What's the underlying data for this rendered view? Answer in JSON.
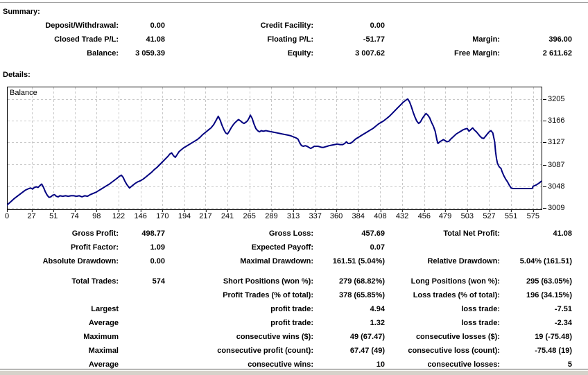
{
  "summary": {
    "heading": "Summary:",
    "rows": [
      {
        "c1l": "Deposit/Withdrawal:",
        "c1v": "0.00",
        "c2l": "Credit Facility:",
        "c2v": "0.00",
        "c3l": "",
        "c3v": ""
      },
      {
        "c1l": "Closed Trade P/L:",
        "c1v": "41.08",
        "c2l": "Floating P/L:",
        "c2v": "-51.77",
        "c3l": "Margin:",
        "c3v": "396.00"
      },
      {
        "c1l": "Balance:",
        "c1v": "3 059.39",
        "c2l": "Equity:",
        "c2v": "3 007.62",
        "c3l": "Free Margin:",
        "c3v": "2 611.62"
      }
    ]
  },
  "details": {
    "heading": "Details:",
    "rows": [
      {
        "c1l": "Gross Profit:",
        "c1v": "498.77",
        "c2l": "Gross Loss:",
        "c2v": "457.69",
        "c3l": "Total Net Profit:",
        "c3v": "41.08"
      },
      {
        "c1l": "Profit Factor:",
        "c1v": "1.09",
        "c2l": "Expected Payoff:",
        "c2v": "0.07",
        "c3l": "",
        "c3v": ""
      },
      {
        "c1l": "Absolute Drawdown:",
        "c1v": "0.00",
        "c2l": "Maximal Drawdown:",
        "c2v": "161.51 (5.04%)",
        "c3l": "Relative Drawdown:",
        "c3v": "5.04% (161.51)"
      },
      {
        "c1l": "Total Trades:",
        "c1v": "574",
        "c2l": "Short Positions (won %):",
        "c2v": "279 (68.82%)",
        "c3l": "Long Positions (won %):",
        "c3v": "295 (63.05%)"
      },
      {
        "c1l": "",
        "c1v": "",
        "c2l": "Profit Trades (% of total):",
        "c2v": "378 (65.85%)",
        "c3l": "Loss trades (% of total):",
        "c3v": "196 (34.15%)"
      },
      {
        "c1l": "Largest",
        "c1v": "",
        "c2l": "profit trade:",
        "c2v": "4.94",
        "c3l": "loss trade:",
        "c3v": "-7.51"
      },
      {
        "c1l": "Average",
        "c1v": "",
        "c2l": "profit trade:",
        "c2v": "1.32",
        "c3l": "loss trade:",
        "c3v": "-2.34"
      },
      {
        "c1l": "Maximum",
        "c1v": "",
        "c2l": "consecutive wins ($):",
        "c2v": "49 (67.47)",
        "c3l": "consecutive losses ($):",
        "c3v": "19 (-75.48)"
      },
      {
        "c1l": "Maximal",
        "c1v": "",
        "c2l": "consecutive profit (count):",
        "c2v": "67.47 (49)",
        "c3l": "consecutive loss (count):",
        "c3v": "-75.48 (19)"
      },
      {
        "c1l": "Average",
        "c1v": "",
        "c2l": "consecutive wins:",
        "c2v": "10",
        "c3l": "consecutive losses:",
        "c3v": "5"
      }
    ]
  },
  "chart_data": {
    "type": "line",
    "title": "Balance",
    "xlabel": "",
    "ylabel": "",
    "x_ticks": [
      0,
      27,
      51,
      74,
      98,
      122,
      146,
      170,
      194,
      217,
      241,
      265,
      289,
      313,
      337,
      360,
      384,
      408,
      432,
      456,
      479,
      503,
      527,
      551,
      575
    ],
    "y_ticks": [
      3009,
      3048,
      3087,
      3127,
      3166,
      3205
    ],
    "x_range": [
      0,
      585
    ],
    "y_range": [
      3005.3,
      3227.2
    ],
    "grid": "dashed",
    "legend_position": "none",
    "line_color": "#000080",
    "grid_color": "#c8c8c8",
    "series": [
      {
        "name": "Balance",
        "points": [
          [
            0,
            3014
          ],
          [
            4,
            3020
          ],
          [
            8,
            3026
          ],
          [
            12,
            3031
          ],
          [
            16,
            3036
          ],
          [
            20,
            3041
          ],
          [
            24,
            3044
          ],
          [
            26,
            3045
          ],
          [
            28,
            3043
          ],
          [
            30,
            3046
          ],
          [
            32,
            3047
          ],
          [
            34,
            3046
          ],
          [
            36,
            3049
          ],
          [
            38,
            3052
          ],
          [
            40,
            3046
          ],
          [
            42,
            3038
          ],
          [
            44,
            3032
          ],
          [
            46,
            3028
          ],
          [
            48,
            3029
          ],
          [
            50,
            3032
          ],
          [
            52,
            3033
          ],
          [
            54,
            3030
          ],
          [
            56,
            3029
          ],
          [
            58,
            3031
          ],
          [
            61,
            3030
          ],
          [
            64,
            3031
          ],
          [
            67,
            3030
          ],
          [
            70,
            3031
          ],
          [
            73,
            3031
          ],
          [
            76,
            3030
          ],
          [
            79,
            3031
          ],
          [
            82,
            3029
          ],
          [
            85,
            3031
          ],
          [
            88,
            3030
          ],
          [
            91,
            3033
          ],
          [
            94,
            3035
          ],
          [
            97,
            3037
          ],
          [
            100,
            3040
          ],
          [
            104,
            3044
          ],
          [
            108,
            3048
          ],
          [
            112,
            3052
          ],
          [
            116,
            3057
          ],
          [
            120,
            3062
          ],
          [
            123,
            3066
          ],
          [
            125,
            3068
          ],
          [
            127,
            3064
          ],
          [
            129,
            3057
          ],
          [
            131,
            3051
          ],
          [
            134,
            3045
          ],
          [
            137,
            3049
          ],
          [
            140,
            3053
          ],
          [
            143,
            3056
          ],
          [
            146,
            3058
          ],
          [
            149,
            3061
          ],
          [
            152,
            3065
          ],
          [
            155,
            3069
          ],
          [
            158,
            3073
          ],
          [
            161,
            3078
          ],
          [
            164,
            3082
          ],
          [
            167,
            3087
          ],
          [
            170,
            3092
          ],
          [
            173,
            3097
          ],
          [
            176,
            3102
          ],
          [
            178,
            3106
          ],
          [
            180,
            3108
          ],
          [
            182,
            3103
          ],
          [
            184,
            3100
          ],
          [
            186,
            3105
          ],
          [
            188,
            3110
          ],
          [
            190,
            3113
          ],
          [
            193,
            3117
          ],
          [
            196,
            3120
          ],
          [
            199,
            3123
          ],
          [
            202,
            3126
          ],
          [
            205,
            3129
          ],
          [
            208,
            3132
          ],
          [
            211,
            3136
          ],
          [
            214,
            3141
          ],
          [
            217,
            3145
          ],
          [
            220,
            3149
          ],
          [
            223,
            3153
          ],
          [
            226,
            3159
          ],
          [
            228,
            3165
          ],
          [
            230,
            3171
          ],
          [
            231,
            3174
          ],
          [
            233,
            3167
          ],
          [
            235,
            3158
          ],
          [
            237,
            3150
          ],
          [
            239,
            3144
          ],
          [
            241,
            3142
          ],
          [
            243,
            3147
          ],
          [
            245,
            3153
          ],
          [
            247,
            3158
          ],
          [
            249,
            3162
          ],
          [
            251,
            3165
          ],
          [
            253,
            3168
          ],
          [
            255,
            3166
          ],
          [
            257,
            3163
          ],
          [
            259,
            3161
          ],
          [
            261,
            3163
          ],
          [
            263,
            3166
          ],
          [
            265,
            3172
          ],
          [
            266,
            3176
          ],
          [
            268,
            3170
          ],
          [
            270,
            3160
          ],
          [
            272,
            3152
          ],
          [
            274,
            3148
          ],
          [
            276,
            3146
          ],
          [
            278,
            3148
          ],
          [
            280,
            3147
          ],
          [
            283,
            3148
          ],
          [
            286,
            3147
          ],
          [
            289,
            3146
          ],
          [
            292,
            3145
          ],
          [
            295,
            3144
          ],
          [
            298,
            3143
          ],
          [
            301,
            3142
          ],
          [
            304,
            3141
          ],
          [
            307,
            3140
          ],
          [
            310,
            3139
          ],
          [
            313,
            3137
          ],
          [
            316,
            3135
          ],
          [
            318,
            3133
          ],
          [
            320,
            3126
          ],
          [
            322,
            3121
          ],
          [
            324,
            3120
          ],
          [
            326,
            3121
          ],
          [
            328,
            3120
          ],
          [
            330,
            3118
          ],
          [
            332,
            3116
          ],
          [
            334,
            3118
          ],
          [
            336,
            3120
          ],
          [
            340,
            3120
          ],
          [
            342,
            3119
          ],
          [
            344,
            3118
          ],
          [
            346,
            3118
          ],
          [
            348,
            3119
          ],
          [
            350,
            3120
          ],
          [
            352,
            3121
          ],
          [
            355,
            3122
          ],
          [
            358,
            3123
          ],
          [
            361,
            3124
          ],
          [
            364,
            3123
          ],
          [
            367,
            3123
          ],
          [
            369,
            3125
          ],
          [
            371,
            3128
          ],
          [
            373,
            3125
          ],
          [
            375,
            3125
          ],
          [
            377,
            3127
          ],
          [
            379,
            3130
          ],
          [
            381,
            3133
          ],
          [
            383,
            3135
          ],
          [
            385,
            3137
          ],
          [
            388,
            3140
          ],
          [
            391,
            3143
          ],
          [
            394,
            3146
          ],
          [
            397,
            3149
          ],
          [
            400,
            3152
          ],
          [
            403,
            3156
          ],
          [
            406,
            3160
          ],
          [
            409,
            3163
          ],
          [
            412,
            3166
          ],
          [
            415,
            3170
          ],
          [
            418,
            3174
          ],
          [
            421,
            3179
          ],
          [
            424,
            3184
          ],
          [
            427,
            3189
          ],
          [
            430,
            3194
          ],
          [
            433,
            3199
          ],
          [
            436,
            3203
          ],
          [
            438,
            3205
          ],
          [
            440,
            3200
          ],
          [
            442,
            3191
          ],
          [
            444,
            3181
          ],
          [
            446,
            3172
          ],
          [
            448,
            3165
          ],
          [
            450,
            3161
          ],
          [
            452,
            3164
          ],
          [
            454,
            3170
          ],
          [
            456,
            3175
          ],
          [
            458,
            3179
          ],
          [
            460,
            3176
          ],
          [
            462,
            3171
          ],
          [
            464,
            3163
          ],
          [
            466,
            3156
          ],
          [
            468,
            3147
          ],
          [
            470,
            3131
          ],
          [
            471,
            3125
          ],
          [
            473,
            3128
          ],
          [
            475,
            3130
          ],
          [
            477,
            3132
          ],
          [
            479,
            3130
          ],
          [
            481,
            3128
          ],
          [
            483,
            3129
          ],
          [
            485,
            3133
          ],
          [
            487,
            3136
          ],
          [
            489,
            3139
          ],
          [
            491,
            3142
          ],
          [
            493,
            3144
          ],
          [
            495,
            3146
          ],
          [
            497,
            3148
          ],
          [
            499,
            3150
          ],
          [
            501,
            3151
          ],
          [
            503,
            3152
          ],
          [
            505,
            3147
          ],
          [
            507,
            3150
          ],
          [
            509,
            3153
          ],
          [
            511,
            3149
          ],
          [
            513,
            3146
          ],
          [
            515,
            3142
          ],
          [
            517,
            3138
          ],
          [
            519,
            3135
          ],
          [
            521,
            3134
          ],
          [
            523,
            3138
          ],
          [
            525,
            3142
          ],
          [
            527,
            3146
          ],
          [
            529,
            3148
          ],
          [
            531,
            3144
          ],
          [
            533,
            3128
          ],
          [
            534,
            3110
          ],
          [
            535,
            3098
          ],
          [
            536,
            3090
          ],
          [
            537,
            3086
          ],
          [
            538,
            3083
          ],
          [
            540,
            3080
          ],
          [
            541,
            3075
          ],
          [
            543,
            3067
          ],
          [
            545,
            3061
          ],
          [
            547,
            3056
          ],
          [
            549,
            3050
          ],
          [
            551,
            3045
          ],
          [
            553,
            3044
          ],
          [
            557,
            3044
          ],
          [
            562,
            3044
          ],
          [
            567,
            3044
          ],
          [
            572,
            3044
          ],
          [
            574,
            3044
          ],
          [
            575,
            3048
          ],
          [
            578,
            3050
          ],
          [
            581,
            3053
          ],
          [
            584,
            3057
          ]
        ]
      }
    ]
  }
}
